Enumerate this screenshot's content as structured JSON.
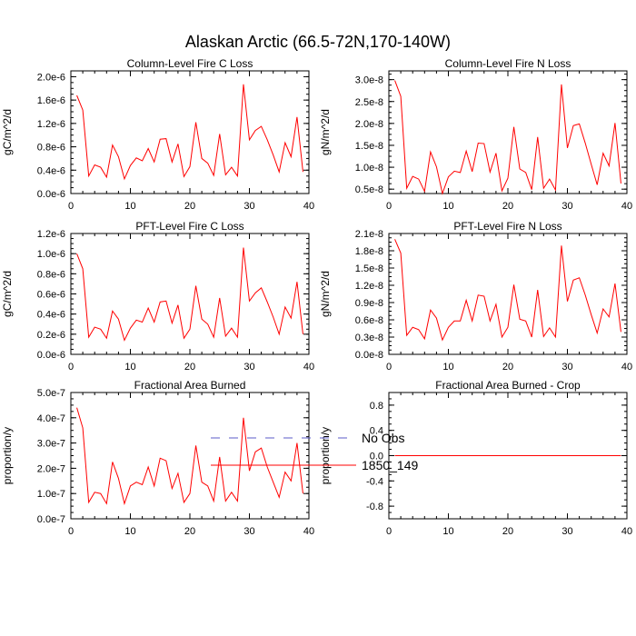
{
  "figure": {
    "title": "Alaskan Arctic (66.5-72N,170-140W)"
  },
  "legend": {
    "items": [
      {
        "label": "No Obs",
        "color": "#5b5bc8",
        "style": "dashed"
      },
      {
        "label": "1850_149",
        "color": "#ff0000",
        "style": "solid"
      }
    ]
  },
  "chart_data": [
    {
      "type": "line",
      "title": "Column-Level Fire C Loss",
      "xlabel": "",
      "ylabel": "gC/m^2/d",
      "xlim": [
        0,
        40
      ],
      "ylim": [
        0.0,
        2.1e-06
      ],
      "xticks": [
        0,
        10,
        20,
        30,
        40
      ],
      "yticks": [
        0.0,
        4e-07,
        8e-07,
        1.2e-06,
        1.6e-06,
        2e-06
      ],
      "ytick_labels": [
        "0.0e-6",
        "0.4e-6",
        "0.8e-6",
        "1.2e-6",
        "1.6e-6",
        "2.0e-6"
      ],
      "x": [
        1,
        2,
        3,
        4,
        5,
        6,
        7,
        8,
        9,
        10,
        11,
        12,
        13,
        14,
        15,
        16,
        17,
        18,
        19,
        20,
        21,
        22,
        23,
        24,
        25,
        26,
        27,
        28,
        29,
        30,
        31,
        32,
        33,
        34,
        35,
        36,
        37,
        38,
        39
      ],
      "series": [
        {
          "name": "1850_149",
          "color": "#ff0000",
          "values": [
            1.68e-06,
            1.43e-06,
            3e-07,
            4.9e-07,
            4.5e-07,
            2.8e-07,
            8.3e-07,
            6.3e-07,
            2.5e-07,
            4.8e-07,
            6.1e-07,
            5.6e-07,
            7.7e-07,
            5.4e-07,
            9.3e-07,
            9.4e-07,
            5.4e-07,
            8.5e-07,
            2.9e-07,
            4.6e-07,
            1.22e-06,
            6e-07,
            5.2e-07,
            3.1e-07,
            1.02e-06,
            3.2e-07,
            4.5e-07,
            3e-07,
            1.87e-06,
            9.2e-07,
            1.08e-06,
            1.15e-06,
            9.2e-07,
            6.6e-07,
            3.7e-07,
            8.7e-07,
            6.3e-07,
            1.31e-06,
            3.7e-07
          ]
        }
      ]
    },
    {
      "type": "line",
      "title": "Column-Level Fire N Loss",
      "xlabel": "",
      "ylabel": "gN/m^2/d",
      "xlim": [
        0,
        40
      ],
      "ylim": [
        4e-09,
        3.2e-08
      ],
      "xticks": [
        0,
        10,
        20,
        30,
        40
      ],
      "yticks": [
        5e-09,
        1e-08,
        1.5e-08,
        2e-08,
        2.5e-08,
        3e-08
      ],
      "ytick_labels": [
        "0.5e-8",
        "1.0e-8",
        "1.5e-8",
        "2.0e-8",
        "2.5e-8",
        "3.0e-8"
      ],
      "x": [
        1,
        2,
        3,
        4,
        5,
        6,
        7,
        8,
        9,
        10,
        11,
        12,
        13,
        14,
        15,
        16,
        17,
        18,
        19,
        20,
        21,
        22,
        23,
        24,
        25,
        26,
        27,
        28,
        29,
        30,
        31,
        32,
        33,
        34,
        35,
        36,
        37,
        38,
        39
      ],
      "series": [
        {
          "name": "1850_149",
          "color": "#ff0000",
          "values": [
            2.98e-08,
            2.62e-08,
            5.2e-09,
            7.9e-09,
            7.3e-09,
            4.5e-09,
            1.35e-08,
            1.01e-08,
            4e-09,
            7.8e-09,
            9.1e-09,
            8.8e-09,
            1.37e-08,
            9e-09,
            1.55e-08,
            1.54e-08,
            8.9e-09,
            1.32e-08,
            4.6e-09,
            7.5e-09,
            1.92e-08,
            9.6e-09,
            8.8e-09,
            4.9e-09,
            1.69e-08,
            5.2e-09,
            7.3e-09,
            4.8e-09,
            2.89e-08,
            1.44e-08,
            1.95e-08,
            1.99e-08,
            1.55e-08,
            1.07e-08,
            6e-09,
            1.32e-08,
            1.03e-08,
            2.01e-08,
            6.3e-09
          ]
        }
      ]
    },
    {
      "type": "line",
      "title": "PFT-Level Fire C Loss",
      "xlabel": "",
      "ylabel": "gC/m^2/d",
      "xlim": [
        0,
        40
      ],
      "ylim": [
        0.0,
        1.2e-06
      ],
      "xticks": [
        0,
        10,
        20,
        30,
        40
      ],
      "yticks": [
        0.0,
        2e-07,
        4e-07,
        6e-07,
        8e-07,
        1e-06,
        1.2e-06
      ],
      "ytick_labels": [
        "0.0e-6",
        "0.2e-6",
        "0.4e-6",
        "0.6e-6",
        "0.8e-6",
        "1.0e-6",
        "1.2e-6"
      ],
      "x": [
        1,
        2,
        3,
        4,
        5,
        6,
        7,
        8,
        9,
        10,
        11,
        12,
        13,
        14,
        15,
        16,
        17,
        18,
        19,
        20,
        21,
        22,
        23,
        24,
        25,
        26,
        27,
        28,
        29,
        30,
        31,
        32,
        33,
        34,
        35,
        36,
        37,
        38,
        39
      ],
      "series": [
        {
          "name": "1850_149",
          "color": "#ff0000",
          "values": [
            1e-06,
            8.5e-07,
            1.7e-07,
            2.7e-07,
            2.5e-07,
            1.6e-07,
            4.3e-07,
            3.5e-07,
            1.4e-07,
            2.6e-07,
            3.4e-07,
            3.2e-07,
            4.6e-07,
            3.2e-07,
            5.2e-07,
            5.3e-07,
            3.1e-07,
            4.9e-07,
            1.6e-07,
            2.5e-07,
            6.8e-07,
            3.5e-07,
            3e-07,
            1.7e-07,
            5.6e-07,
            1.8e-07,
            2.6e-07,
            1.7e-07,
            1.06e-06,
            5.3e-07,
            6.1e-07,
            6.6e-07,
            5.2e-07,
            3.7e-07,
            2e-07,
            4.7e-07,
            3.6e-07,
            7.2e-07,
            2e-07
          ]
        }
      ]
    },
    {
      "type": "line",
      "title": "PFT-Level Fire N Loss",
      "xlabel": "",
      "ylabel": "gN/m^2/d",
      "xlim": [
        0,
        40
      ],
      "ylim": [
        0.0,
        2.1e-08
      ],
      "xticks": [
        0,
        10,
        20,
        30,
        40
      ],
      "yticks": [
        0.0,
        3e-09,
        6e-09,
        9e-09,
        1.2e-08,
        1.5e-08,
        1.8e-08,
        2.1e-08
      ],
      "ytick_labels": [
        "0.0e-8",
        "0.3e-8",
        "0.6e-8",
        "0.9e-8",
        "1.2e-8",
        "1.5e-8",
        "1.8e-8",
        "2.1e-8"
      ],
      "x": [
        1,
        2,
        3,
        4,
        5,
        6,
        7,
        8,
        9,
        10,
        11,
        12,
        13,
        14,
        15,
        16,
        17,
        18,
        19,
        20,
        21,
        22,
        23,
        24,
        25,
        26,
        27,
        28,
        29,
        30,
        31,
        32,
        33,
        34,
        35,
        36,
        37,
        38,
        39
      ],
      "series": [
        {
          "name": "1850_149",
          "color": "#ff0000",
          "values": [
            2e-08,
            1.76e-08,
            3.3e-09,
            4.7e-09,
            4.3e-09,
            2.7e-09,
            7.7e-09,
            6.3e-09,
            2.5e-09,
            4.7e-09,
            5.8e-09,
            5.8e-09,
            9.4e-09,
            5.8e-09,
            1.03e-08,
            1.01e-08,
            5.8e-09,
            8.7e-09,
            3e-09,
            4.7e-09,
            1.21e-08,
            6.1e-09,
            5.8e-09,
            3e-09,
            1.12e-08,
            3.1e-09,
            4.6e-09,
            3e-09,
            1.89e-08,
            9.2e-09,
            1.29e-08,
            1.33e-08,
            1.03e-08,
            6.9e-09,
            3.7e-09,
            7.9e-09,
            6.5e-09,
            1.23e-08,
            3.9e-09
          ]
        }
      ]
    },
    {
      "type": "line",
      "title": "Fractional Area Burned",
      "xlabel": "",
      "ylabel": "proportion/y",
      "xlim": [
        0,
        40
      ],
      "ylim": [
        0.0,
        5e-07
      ],
      "xticks": [
        0,
        10,
        20,
        30,
        40
      ],
      "yticks": [
        0.0,
        1e-07,
        2e-07,
        3e-07,
        4e-07,
        5e-07
      ],
      "ytick_labels": [
        "0.0e-7",
        "1.0e-7",
        "2.0e-7",
        "3.0e-7",
        "4.0e-7",
        "5.0e-7"
      ],
      "x": [
        1,
        2,
        3,
        4,
        5,
        6,
        7,
        8,
        9,
        10,
        11,
        12,
        13,
        14,
        15,
        16,
        17,
        18,
        19,
        20,
        21,
        22,
        23,
        24,
        25,
        26,
        27,
        28,
        29,
        30,
        31,
        32,
        33,
        34,
        35,
        36,
        37,
        38,
        39
      ],
      "series": [
        {
          "name": "1850_149",
          "color": "#ff0000",
          "values": [
            4.4e-07,
            3.6e-07,
            6.5e-08,
            1.05e-07,
            1e-07,
            6e-08,
            2.25e-07,
            1.6e-07,
            6e-08,
            1.3e-07,
            1.45e-07,
            1.35e-07,
            2.05e-07,
            1.3e-07,
            2.4e-07,
            2.3e-07,
            1.2e-07,
            1.8e-07,
            6.5e-08,
            1e-07,
            2.9e-07,
            1.45e-07,
            1.3e-07,
            7e-08,
            2.45e-07,
            7e-08,
            1.05e-07,
            7e-08,
            4e-07,
            1.9e-07,
            2.65e-07,
            2.8e-07,
            2.05e-07,
            1.45e-07,
            8.5e-08,
            1.85e-07,
            1.5e-07,
            3e-07,
            1e-07
          ]
        }
      ]
    },
    {
      "type": "line",
      "title": "Fractional Area Burned - Crop",
      "xlabel": "",
      "ylabel": "proportion/y",
      "xlim": [
        0,
        40
      ],
      "ylim": [
        -1.0,
        1.0
      ],
      "xticks": [
        0,
        10,
        20,
        30,
        40
      ],
      "yticks": [
        -0.8,
        -0.4,
        0.0,
        0.4,
        0.8
      ],
      "ytick_labels": [
        "-0.8",
        "-0.4",
        "0.0",
        "0.4",
        "0.8"
      ],
      "x": [
        1,
        2,
        3,
        4,
        5,
        6,
        7,
        8,
        9,
        10,
        11,
        12,
        13,
        14,
        15,
        16,
        17,
        18,
        19,
        20,
        21,
        22,
        23,
        24,
        25,
        26,
        27,
        28,
        29,
        30,
        31,
        32,
        33,
        34,
        35,
        36,
        37,
        38,
        39
      ],
      "series": [
        {
          "name": "1850_149",
          "color": "#ff0000",
          "values": [
            0,
            0,
            0,
            0,
            0,
            0,
            0,
            0,
            0,
            0,
            0,
            0,
            0,
            0,
            0,
            0,
            0,
            0,
            0,
            0,
            0,
            0,
            0,
            0,
            0,
            0,
            0,
            0,
            0,
            0,
            0,
            0,
            0,
            0,
            0,
            0,
            0,
            0,
            0
          ]
        }
      ]
    }
  ]
}
